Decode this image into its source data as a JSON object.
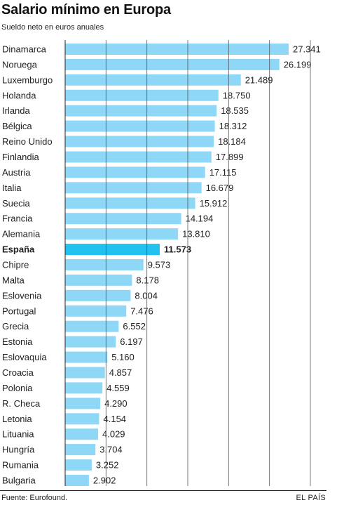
{
  "chart_data": {
    "type": "bar",
    "orientation": "horizontal",
    "title": "Salario mínimo en Europa",
    "subtitle": "Sueldo neto en euros anuales",
    "categories": [
      "Dinamarca",
      "Noruega",
      "Luxemburgo",
      "Holanda",
      "Irlanda",
      "Bélgica",
      "Reino Unido",
      "Finlandia",
      "Austria",
      "Italia",
      "Suecia",
      "Francia",
      "Alemania",
      "España",
      "Chipre",
      "Malta",
      "Eslovenia",
      "Portugal",
      "Grecia",
      "Estonia",
      "Eslovaquia",
      "Croacia",
      "Polonia",
      "R. Checa",
      "Letonia",
      "Lituania",
      "Hungría",
      "Rumania",
      "Bulgaria"
    ],
    "values": [
      27341,
      26199,
      21489,
      18750,
      18535,
      18312,
      18184,
      17899,
      17115,
      16679,
      15912,
      14194,
      13810,
      11573,
      9573,
      8178,
      8004,
      7476,
      6552,
      6197,
      5160,
      4857,
      4559,
      4290,
      4154,
      4029,
      3704,
      3252,
      2902
    ],
    "value_labels": [
      "27.341",
      "26.199",
      "21.489",
      "18.750",
      "18.535",
      "18.312",
      "18.184",
      "17.899",
      "17.115",
      "16.679",
      "15.912",
      "14.194",
      "13.810",
      "11.573",
      "9.573",
      "8.178",
      "8.004",
      "7.476",
      "6.552",
      "6.197",
      "5.160",
      "4.857",
      "4.559",
      "4.290",
      "4.154",
      "4.029",
      "3.704",
      "3.252",
      "2.902"
    ],
    "highlight": "España",
    "xlim": [
      0,
      30000
    ],
    "grid": true,
    "bar_color": "#8fd7f7",
    "highlight_color": "#20c0ef"
  },
  "footer": {
    "source": "Fuente: Eurofound.",
    "brand": "EL PAÍS"
  }
}
